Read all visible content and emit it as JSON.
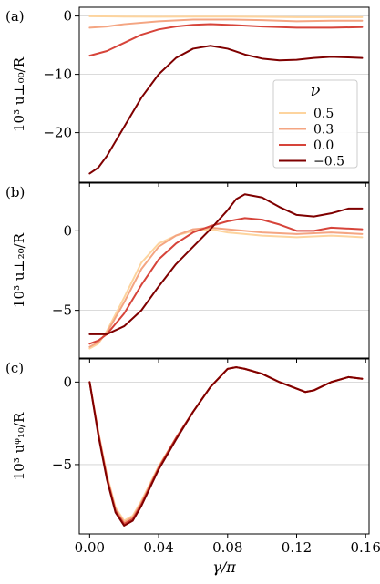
{
  "chart_data": {
    "type": "line",
    "shared_x": {
      "xlabel": "γ/π",
      "xlim": [
        -0.006,
        0.162
      ],
      "xticks": [
        0.0,
        0.04,
        0.08,
        0.12,
        0.16
      ],
      "xtick_labels": [
        "0.00",
        "0.04",
        "0.08",
        "0.12",
        "0.16"
      ]
    },
    "legend": {
      "title": "ν",
      "placement": "inside panel (a), lower-right",
      "entries": [
        "0.5",
        "0.3",
        "0.0",
        "−0.5"
      ]
    },
    "colors": [
      "#fdd49e",
      "#f4a582",
      "#d6443a",
      "#7f0000"
    ],
    "panels": [
      {
        "label": "(a)",
        "ylabel": "10³ u⊥₀₀/R",
        "ylim": [
          -28.5,
          1.5
        ],
        "yticks": [
          0,
          -10,
          -20
        ],
        "ytick_labels": [
          "0",
          "−10",
          "−20"
        ],
        "grid": "horizontal",
        "series": [
          {
            "name": "0.5",
            "points": [
              [
                0.0,
                -0.05
              ],
              [
                0.02,
                -0.1
              ],
              [
                0.04,
                -0.12
              ],
              [
                0.06,
                -0.1
              ],
              [
                0.08,
                -0.1
              ],
              [
                0.1,
                -0.15
              ],
              [
                0.12,
                -0.2
              ],
              [
                0.14,
                -0.2
              ],
              [
                0.158,
                -0.2
              ]
            ]
          },
          {
            "name": "0.3",
            "points": [
              [
                0.0,
                -2.0
              ],
              [
                0.01,
                -1.8
              ],
              [
                0.02,
                -1.4
              ],
              [
                0.04,
                -0.9
              ],
              [
                0.06,
                -0.6
              ],
              [
                0.08,
                -0.6
              ],
              [
                0.1,
                -0.7
              ],
              [
                0.12,
                -0.9
              ],
              [
                0.14,
                -0.8
              ],
              [
                0.158,
                -0.8
              ]
            ]
          },
          {
            "name": "0.0",
            "points": [
              [
                0.0,
                -6.8
              ],
              [
                0.01,
                -6.0
              ],
              [
                0.02,
                -4.6
              ],
              [
                0.03,
                -3.2
              ],
              [
                0.04,
                -2.3
              ],
              [
                0.05,
                -1.8
              ],
              [
                0.06,
                -1.5
              ],
              [
                0.07,
                -1.4
              ],
              [
                0.08,
                -1.5
              ],
              [
                0.1,
                -1.8
              ],
              [
                0.12,
                -2.0
              ],
              [
                0.14,
                -2.0
              ],
              [
                0.158,
                -1.9
              ]
            ]
          },
          {
            "name": "−0.5",
            "points": [
              [
                0.0,
                -27.0
              ],
              [
                0.005,
                -26.0
              ],
              [
                0.01,
                -24.0
              ],
              [
                0.02,
                -19.0
              ],
              [
                0.03,
                -14.0
              ],
              [
                0.04,
                -10.0
              ],
              [
                0.05,
                -7.2
              ],
              [
                0.06,
                -5.6
              ],
              [
                0.07,
                -5.1
              ],
              [
                0.08,
                -5.6
              ],
              [
                0.09,
                -6.6
              ],
              [
                0.1,
                -7.3
              ],
              [
                0.11,
                -7.6
              ],
              [
                0.12,
                -7.5
              ],
              [
                0.13,
                -7.2
              ],
              [
                0.14,
                -7.0
              ],
              [
                0.15,
                -7.1
              ],
              [
                0.158,
                -7.2
              ]
            ]
          }
        ]
      },
      {
        "label": "(b)",
        "ylabel": "10³ u⊥₂₀/R",
        "ylim": [
          -8.0,
          3.0
        ],
        "yticks": [
          0,
          -5
        ],
        "ytick_labels": [
          "0",
          "−5"
        ],
        "grid": "horizontal",
        "series": [
          {
            "name": "0.5",
            "points": [
              [
                0.0,
                -7.4
              ],
              [
                0.005,
                -7.1
              ],
              [
                0.01,
                -6.3
              ],
              [
                0.02,
                -4.2
              ],
              [
                0.03,
                -2.0
              ],
              [
                0.04,
                -0.8
              ],
              [
                0.05,
                -0.3
              ],
              [
                0.06,
                0.0
              ],
              [
                0.07,
                0.1
              ],
              [
                0.08,
                -0.1
              ],
              [
                0.1,
                -0.3
              ],
              [
                0.12,
                -0.4
              ],
              [
                0.14,
                -0.3
              ],
              [
                0.158,
                -0.4
              ]
            ]
          },
          {
            "name": "0.3",
            "points": [
              [
                0.0,
                -7.3
              ],
              [
                0.005,
                -7.0
              ],
              [
                0.01,
                -6.4
              ],
              [
                0.02,
                -4.5
              ],
              [
                0.03,
                -2.4
              ],
              [
                0.04,
                -1.0
              ],
              [
                0.05,
                -0.3
              ],
              [
                0.06,
                0.1
              ],
              [
                0.07,
                0.2
              ],
              [
                0.08,
                0.1
              ],
              [
                0.1,
                -0.1
              ],
              [
                0.12,
                -0.2
              ],
              [
                0.14,
                -0.1
              ],
              [
                0.158,
                -0.2
              ]
            ]
          },
          {
            "name": "0.0",
            "points": [
              [
                0.0,
                -7.1
              ],
              [
                0.005,
                -6.9
              ],
              [
                0.01,
                -6.5
              ],
              [
                0.02,
                -5.2
              ],
              [
                0.03,
                -3.4
              ],
              [
                0.04,
                -1.8
              ],
              [
                0.05,
                -0.8
              ],
              [
                0.06,
                -0.1
              ],
              [
                0.07,
                0.3
              ],
              [
                0.08,
                0.6
              ],
              [
                0.09,
                0.8
              ],
              [
                0.1,
                0.7
              ],
              [
                0.11,
                0.4
              ],
              [
                0.12,
                0.0
              ],
              [
                0.13,
                0.0
              ],
              [
                0.14,
                0.2
              ],
              [
                0.158,
                0.1
              ]
            ]
          },
          {
            "name": "−0.5",
            "points": [
              [
                0.0,
                -6.5
              ],
              [
                0.005,
                -6.5
              ],
              [
                0.01,
                -6.5
              ],
              [
                0.02,
                -6.0
              ],
              [
                0.03,
                -5.0
              ],
              [
                0.04,
                -3.5
              ],
              [
                0.05,
                -2.1
              ],
              [
                0.06,
                -1.0
              ],
              [
                0.07,
                0.1
              ],
              [
                0.08,
                1.3
              ],
              [
                0.085,
                2.0
              ],
              [
                0.09,
                2.3
              ],
              [
                0.1,
                2.1
              ],
              [
                0.11,
                1.5
              ],
              [
                0.12,
                1.0
              ],
              [
                0.13,
                0.9
              ],
              [
                0.14,
                1.1
              ],
              [
                0.15,
                1.4
              ],
              [
                0.158,
                1.4
              ]
            ]
          }
        ]
      },
      {
        "label": "(c)",
        "ylabel": "10³ uᵠ₁₀/R",
        "ylim": [
          -9.2,
          1.4
        ],
        "yticks": [
          0,
          -5
        ],
        "ytick_labels": [
          "0",
          "−5"
        ],
        "grid": "horizontal",
        "series": [
          {
            "name": "0.5",
            "points": [
              [
                0.0,
                0.0
              ],
              [
                0.005,
                -3.0
              ],
              [
                0.01,
                -5.6
              ],
              [
                0.015,
                -7.6
              ],
              [
                0.02,
                -8.4
              ],
              [
                0.025,
                -8.1
              ],
              [
                0.03,
                -7.2
              ],
              [
                0.04,
                -5.1
              ],
              [
                0.05,
                -3.4
              ],
              [
                0.06,
                -1.8
              ],
              [
                0.07,
                -0.3
              ],
              [
                0.08,
                0.8
              ],
              [
                0.085,
                0.9
              ],
              [
                0.09,
                0.8
              ],
              [
                0.1,
                0.5
              ],
              [
                0.11,
                0.0
              ],
              [
                0.12,
                -0.4
              ],
              [
                0.125,
                -0.6
              ],
              [
                0.13,
                -0.5
              ],
              [
                0.14,
                0.0
              ],
              [
                0.15,
                0.3
              ],
              [
                0.158,
                0.2
              ]
            ]
          },
          {
            "name": "0.3",
            "points": [
              [
                0.0,
                0.0
              ],
              [
                0.005,
                -3.0
              ],
              [
                0.01,
                -5.7
              ],
              [
                0.015,
                -7.7
              ],
              [
                0.02,
                -8.5
              ],
              [
                0.025,
                -8.2
              ],
              [
                0.03,
                -7.3
              ],
              [
                0.04,
                -5.2
              ],
              [
                0.05,
                -3.4
              ],
              [
                0.06,
                -1.8
              ],
              [
                0.07,
                -0.3
              ],
              [
                0.08,
                0.8
              ],
              [
                0.085,
                0.9
              ],
              [
                0.09,
                0.8
              ],
              [
                0.1,
                0.5
              ],
              [
                0.11,
                0.0
              ],
              [
                0.12,
                -0.4
              ],
              [
                0.125,
                -0.6
              ],
              [
                0.13,
                -0.5
              ],
              [
                0.14,
                0.0
              ],
              [
                0.15,
                0.3
              ],
              [
                0.158,
                0.2
              ]
            ]
          },
          {
            "name": "0.0",
            "points": [
              [
                0.0,
                0.0
              ],
              [
                0.005,
                -3.1
              ],
              [
                0.01,
                -5.8
              ],
              [
                0.015,
                -7.8
              ],
              [
                0.02,
                -8.6
              ],
              [
                0.025,
                -8.3
              ],
              [
                0.03,
                -7.4
              ],
              [
                0.04,
                -5.2
              ],
              [
                0.05,
                -3.4
              ],
              [
                0.06,
                -1.8
              ],
              [
                0.07,
                -0.3
              ],
              [
                0.08,
                0.8
              ],
              [
                0.085,
                0.9
              ],
              [
                0.09,
                0.8
              ],
              [
                0.1,
                0.5
              ],
              [
                0.11,
                0.0
              ],
              [
                0.12,
                -0.4
              ],
              [
                0.125,
                -0.6
              ],
              [
                0.13,
                -0.5
              ],
              [
                0.14,
                0.0
              ],
              [
                0.15,
                0.3
              ],
              [
                0.158,
                0.2
              ]
            ]
          },
          {
            "name": "−0.5",
            "points": [
              [
                0.0,
                0.0
              ],
              [
                0.005,
                -3.2
              ],
              [
                0.01,
                -5.9
              ],
              [
                0.015,
                -7.9
              ],
              [
                0.02,
                -8.7
              ],
              [
                0.025,
                -8.4
              ],
              [
                0.03,
                -7.5
              ],
              [
                0.04,
                -5.3
              ],
              [
                0.05,
                -3.5
              ],
              [
                0.06,
                -1.8
              ],
              [
                0.07,
                -0.3
              ],
              [
                0.08,
                0.8
              ],
              [
                0.085,
                0.9
              ],
              [
                0.09,
                0.8
              ],
              [
                0.1,
                0.5
              ],
              [
                0.11,
                0.0
              ],
              [
                0.12,
                -0.4
              ],
              [
                0.125,
                -0.6
              ],
              [
                0.13,
                -0.5
              ],
              [
                0.14,
                0.0
              ],
              [
                0.15,
                0.3
              ],
              [
                0.158,
                0.2
              ]
            ]
          }
        ]
      }
    ]
  }
}
